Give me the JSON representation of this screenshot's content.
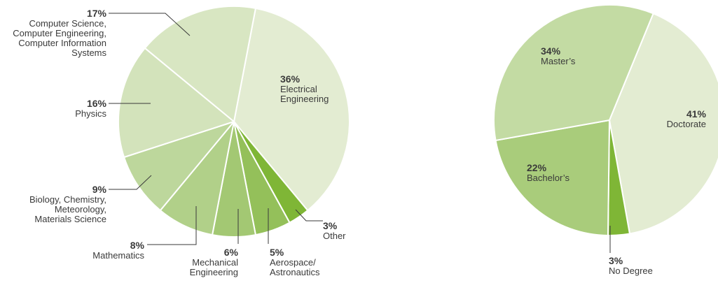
{
  "chart_data": [
    {
      "type": "pie",
      "title": "",
      "slices": [
        {
          "label": "Electrical Engineering",
          "value": 36,
          "pct_label": "36%",
          "label_lines": [
            "Electrical",
            "Engineering"
          ],
          "color": "#e3ecd2"
        },
        {
          "label": "Other",
          "value": 3,
          "pct_label": "3%",
          "label_lines": [
            "Other"
          ],
          "color": "#7fb636"
        },
        {
          "label": "Aerospace/Astronautics",
          "value": 5,
          "pct_label": "5%",
          "label_lines": [
            "Aerospace/",
            "Astronautics"
          ],
          "color": "#94c05a"
        },
        {
          "label": "Mechanical Engineering",
          "value": 6,
          "pct_label": "6%",
          "label_lines": [
            "Mechanical",
            "Engineering"
          ],
          "color": "#a3c873"
        },
        {
          "label": "Mathematics",
          "value": 8,
          "pct_label": "8%",
          "label_lines": [
            "Mathematics"
          ],
          "color": "#b1d089"
        },
        {
          "label": "Biology, Chemistry, Meteorology, Materials Science",
          "value": 9,
          "pct_label": "9%",
          "label_lines": [
            "Biology, Chemistry,",
            "Meteorology,",
            "Materials Science"
          ],
          "color": "#bdd79c"
        },
        {
          "label": "Physics",
          "value": 16,
          "pct_label": "16%",
          "label_lines": [
            "Physics"
          ],
          "color": "#d3e3bb"
        },
        {
          "label": "Computer Science, Computer Engineering, Computer Information Systems",
          "value": 17,
          "pct_label": "17%",
          "label_lines": [
            "Computer Science,",
            "Computer Engineering,",
            "Computer Information",
            "Systems"
          ],
          "color": "#d8e6c2"
        }
      ]
    },
    {
      "type": "pie",
      "title": "",
      "slices": [
        {
          "label": "Doctorate",
          "value": 41,
          "pct_label": "41%",
          "label_lines": [
            "Doctorate"
          ],
          "color": "#e3ecd2"
        },
        {
          "label": "No Degree",
          "value": 3,
          "pct_label": "3%",
          "label_lines": [
            "No Degree"
          ],
          "color": "#7fb636"
        },
        {
          "label": "Bachelor's",
          "value": 22,
          "pct_label": "22%",
          "label_lines": [
            "Bachelor’s"
          ],
          "color": "#a9cc7b"
        },
        {
          "label": "Master's",
          "value": 34,
          "pct_label": "34%",
          "label_lines": [
            "Master’s"
          ],
          "color": "#c3dba3"
        }
      ]
    }
  ]
}
